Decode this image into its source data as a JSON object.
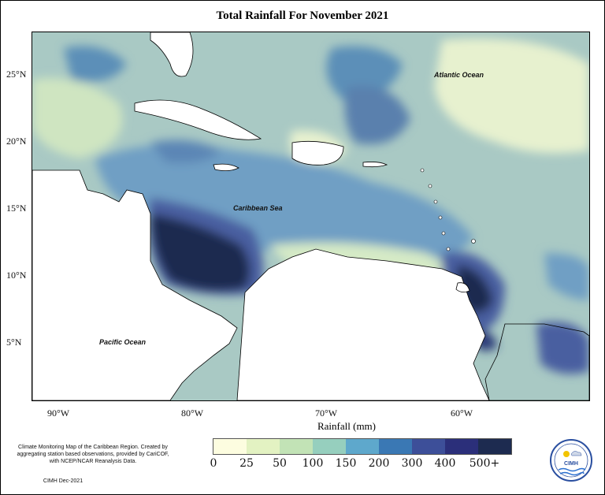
{
  "title": "Total Rainfall For November 2021",
  "y_axis": [
    "25°N",
    "20°N",
    "15°N",
    "10°N",
    "5°N"
  ],
  "x_axis": [
    "90°W",
    "80°W",
    "70°W",
    "60°W"
  ],
  "labels": {
    "atlantic": "Atlantic Ocean",
    "caribbean": "Caribbean Sea",
    "pacific": "Pacific Ocean"
  },
  "legend": {
    "title": "Rainfall (mm)",
    "ticks": [
      "0",
      "25",
      "50",
      "100",
      "150",
      "200",
      "300",
      "400",
      "500+"
    ],
    "colors": [
      "#fdfde0",
      "#e3f2c2",
      "#c2e3b6",
      "#96cfbe",
      "#5ea8cc",
      "#3a78b4",
      "#3d4f99",
      "#2b2f7a",
      "#1d2b50"
    ]
  },
  "credit": "Climate Monitoring Map of the Caribbean Region. Created by aggregating station based observations, provided by CariCOF, with NCEP/NCAR Reanalysis Data.",
  "credit_date": "CIMH Dec-2021",
  "logo_text": "CIMH"
}
